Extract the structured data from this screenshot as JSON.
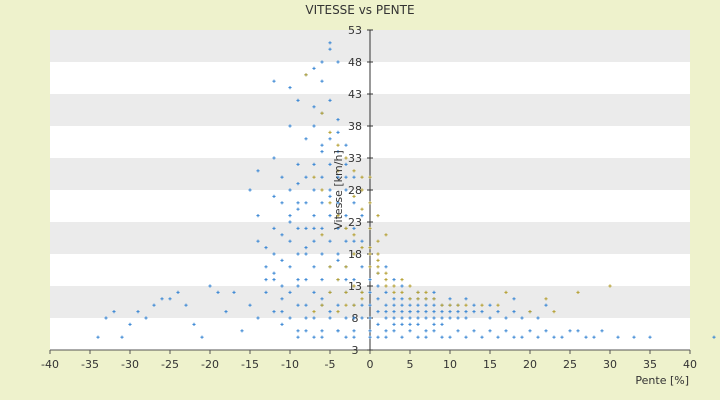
{
  "chart_data": {
    "type": "scatter",
    "title": "VITESSE vs PENTE",
    "xlabel": "Pente [%]",
    "ylabel": "Vitesse [km/h]",
    "xlim": [
      -40,
      40
    ],
    "ylim": [
      3,
      53
    ],
    "x_ticks": [
      -40,
      -35,
      -30,
      -25,
      -20,
      -15,
      -10,
      -5,
      0,
      5,
      10,
      15,
      20,
      25,
      30,
      35,
      40
    ],
    "y_ticks": [
      3,
      8,
      13,
      18,
      23,
      28,
      33,
      38,
      43,
      48,
      53
    ],
    "grid": true,
    "legend": "none",
    "colors": {
      "background": "#eef2cc",
      "band_light": "#ffffff",
      "band_dark": "#ebebeb",
      "series_primary": "#3a87d4",
      "series_secondary": "#b5a033",
      "axis": "#555555"
    },
    "series": [
      {
        "color": "#3a87d4",
        "points": [
          [
            -34,
            5
          ],
          [
            -33,
            8
          ],
          [
            -32,
            9
          ],
          [
            -31,
            5
          ],
          [
            -30,
            7
          ],
          [
            -29,
            9
          ],
          [
            -28,
            8
          ],
          [
            -27,
            10
          ],
          [
            -26,
            11
          ],
          [
            -25,
            11
          ],
          [
            -24,
            12
          ],
          [
            -23,
            10
          ],
          [
            -22,
            7
          ],
          [
            -21,
            5
          ],
          [
            -20,
            13
          ],
          [
            -19,
            12
          ],
          [
            -18,
            9
          ],
          [
            -17,
            12
          ],
          [
            -16,
            6
          ],
          [
            -15,
            10
          ],
          [
            -14,
            8
          ],
          [
            -13,
            14
          ],
          [
            -12,
            9
          ],
          [
            -11,
            7
          ],
          [
            -15,
            28
          ],
          [
            -14,
            24
          ],
          [
            -14,
            20
          ],
          [
            -13,
            12
          ],
          [
            -13,
            16
          ],
          [
            -12,
            22
          ],
          [
            -12,
            18
          ],
          [
            -12,
            14
          ],
          [
            -11,
            26
          ],
          [
            -11,
            21
          ],
          [
            -11,
            17
          ],
          [
            -11,
            13
          ],
          [
            -11,
            9
          ],
          [
            -10,
            28
          ],
          [
            -10,
            24
          ],
          [
            -10,
            20
          ],
          [
            -10,
            16
          ],
          [
            -10,
            12
          ],
          [
            -10,
            8
          ],
          [
            -9,
            26
          ],
          [
            -9,
            22
          ],
          [
            -9,
            18
          ],
          [
            -9,
            14
          ],
          [
            -9,
            10
          ],
          [
            -9,
            6
          ],
          [
            -8,
            30
          ],
          [
            -8,
            26
          ],
          [
            -8,
            22
          ],
          [
            -8,
            18
          ],
          [
            -8,
            14
          ],
          [
            -8,
            10
          ],
          [
            -8,
            6
          ],
          [
            -7,
            32
          ],
          [
            -7,
            28
          ],
          [
            -7,
            24
          ],
          [
            -7,
            20
          ],
          [
            -7,
            16
          ],
          [
            -7,
            12
          ],
          [
            -7,
            8
          ],
          [
            -6,
            34
          ],
          [
            -6,
            30
          ],
          [
            -6,
            26
          ],
          [
            -6,
            22
          ],
          [
            -6,
            18
          ],
          [
            -6,
            14
          ],
          [
            -6,
            10
          ],
          [
            -6,
            6
          ],
          [
            -5,
            36
          ],
          [
            -5,
            32
          ],
          [
            -5,
            28
          ],
          [
            -5,
            24
          ],
          [
            -5,
            20
          ],
          [
            -5,
            16
          ],
          [
            -5,
            12
          ],
          [
            -5,
            8
          ],
          [
            -4,
            34
          ],
          [
            -4,
            30
          ],
          [
            -4,
            26
          ],
          [
            -4,
            22
          ],
          [
            -4,
            18
          ],
          [
            -4,
            14
          ],
          [
            -4,
            10
          ],
          [
            -4,
            6
          ],
          [
            -3,
            32
          ],
          [
            -3,
            28
          ],
          [
            -3,
            24
          ],
          [
            -3,
            20
          ],
          [
            -3,
            16
          ],
          [
            -3,
            12
          ],
          [
            -3,
            8
          ],
          [
            -2,
            30
          ],
          [
            -2,
            26
          ],
          [
            -2,
            22
          ],
          [
            -2,
            18
          ],
          [
            -2,
            14
          ],
          [
            -2,
            10
          ],
          [
            -2,
            6
          ],
          [
            -1,
            24
          ],
          [
            -1,
            20
          ],
          [
            -1,
            16
          ],
          [
            -1,
            12
          ],
          [
            -1,
            8
          ],
          [
            -5,
            51
          ],
          [
            -5,
            50
          ],
          [
            -6,
            48
          ],
          [
            -4,
            48
          ],
          [
            -8,
            46
          ],
          [
            -7,
            47
          ],
          [
            -6,
            45
          ],
          [
            -12,
            45
          ],
          [
            -10,
            44
          ],
          [
            -9,
            42
          ],
          [
            -7,
            41
          ],
          [
            -5,
            42
          ],
          [
            -4,
            39
          ],
          [
            -10,
            38
          ],
          [
            -8,
            36
          ],
          [
            -6,
            35
          ],
          [
            -4,
            37
          ],
          [
            -12,
            33
          ],
          [
            -9,
            32
          ],
          [
            -7,
            38
          ],
          [
            -3,
            35
          ],
          [
            -11,
            30
          ],
          [
            -9,
            29
          ],
          [
            -14,
            31
          ],
          [
            -6,
            40
          ],
          [
            -3,
            30
          ],
          [
            -12,
            27
          ],
          [
            -9,
            25
          ],
          [
            -7,
            22
          ],
          [
            -5,
            27
          ],
          [
            -3,
            22
          ],
          [
            -13,
            19
          ],
          [
            -10,
            23
          ],
          [
            -8,
            19
          ],
          [
            -4,
            17
          ],
          [
            -2,
            20
          ],
          [
            -12,
            15
          ],
          [
            -9,
            13
          ],
          [
            -6,
            11
          ],
          [
            -3,
            14
          ],
          [
            -1,
            10
          ],
          [
            -11,
            11
          ],
          [
            -8,
            8
          ],
          [
            -5,
            9
          ],
          [
            -2,
            8
          ],
          [
            -7,
            5
          ],
          [
            -4,
            6
          ],
          [
            -2,
            5
          ],
          [
            -9,
            5
          ],
          [
            -6,
            5
          ],
          [
            -3,
            5
          ],
          [
            0,
            10
          ],
          [
            0,
            8
          ],
          [
            0,
            6
          ],
          [
            0,
            12
          ],
          [
            0,
            5
          ],
          [
            0,
            14
          ],
          [
            1,
            9
          ],
          [
            1,
            11
          ],
          [
            1,
            13
          ],
          [
            1,
            7
          ],
          [
            1,
            15
          ],
          [
            2,
            8
          ],
          [
            2,
            10
          ],
          [
            2,
            12
          ],
          [
            2,
            6
          ],
          [
            2,
            9
          ],
          [
            3,
            8
          ],
          [
            3,
            10
          ],
          [
            3,
            11
          ],
          [
            3,
            9
          ],
          [
            3,
            7
          ],
          [
            4,
            9
          ],
          [
            4,
            10
          ],
          [
            4,
            8
          ],
          [
            4,
            11
          ],
          [
            4,
            7
          ],
          [
            5,
            9
          ],
          [
            5,
            10
          ],
          [
            5,
            8
          ],
          [
            5,
            11
          ],
          [
            5,
            7
          ],
          [
            5,
            9
          ],
          [
            6,
            9
          ],
          [
            6,
            10
          ],
          [
            6,
            8
          ],
          [
            6,
            11
          ],
          [
            6,
            7
          ],
          [
            7,
            9
          ],
          [
            7,
            10
          ],
          [
            7,
            8
          ],
          [
            7,
            11
          ],
          [
            7,
            6
          ],
          [
            8,
            9
          ],
          [
            8,
            10
          ],
          [
            8,
            8
          ],
          [
            8,
            7
          ],
          [
            8,
            11
          ],
          [
            9,
            9
          ],
          [
            9,
            10
          ],
          [
            9,
            8
          ],
          [
            9,
            7
          ],
          [
            10,
            9
          ],
          [
            10,
            10
          ],
          [
            10,
            8
          ],
          [
            11,
            9
          ],
          [
            11,
            8
          ],
          [
            11,
            10
          ],
          [
            12,
            9
          ],
          [
            12,
            8
          ],
          [
            13,
            9
          ],
          [
            13,
            10
          ],
          [
            14,
            9
          ],
          [
            15,
            8
          ],
          [
            16,
            9
          ],
          [
            17,
            8
          ],
          [
            18,
            9
          ],
          [
            19,
            8
          ],
          [
            20,
            9
          ],
          [
            21,
            8
          ],
          [
            1,
            5
          ],
          [
            2,
            5
          ],
          [
            3,
            6
          ],
          [
            4,
            5
          ],
          [
            5,
            6
          ],
          [
            6,
            5
          ],
          [
            7,
            5
          ],
          [
            8,
            6
          ],
          [
            9,
            5
          ],
          [
            10,
            5
          ],
          [
            11,
            6
          ],
          [
            12,
            5
          ],
          [
            13,
            6
          ],
          [
            14,
            5
          ],
          [
            15,
            6
          ],
          [
            16,
            5
          ],
          [
            17,
            6
          ],
          [
            18,
            5
          ],
          [
            19,
            5
          ],
          [
            20,
            6
          ],
          [
            21,
            5
          ],
          [
            22,
            6
          ],
          [
            23,
            5
          ],
          [
            24,
            5
          ],
          [
            25,
            6
          ],
          [
            26,
            6
          ],
          [
            27,
            5
          ],
          [
            28,
            5
          ],
          [
            29,
            6
          ],
          [
            31,
            5
          ],
          [
            33,
            5
          ],
          [
            35,
            5
          ],
          [
            43,
            5
          ],
          [
            2,
            16
          ],
          [
            3,
            14
          ],
          [
            4,
            13
          ],
          [
            6,
            12
          ],
          [
            8,
            12
          ],
          [
            10,
            11
          ],
          [
            12,
            11
          ],
          [
            15,
            10
          ],
          [
            18,
            11
          ],
          [
            22,
            10
          ]
        ]
      },
      {
        "color": "#b5a033",
        "points": [
          [
            -8,
            46
          ],
          [
            -6,
            40
          ],
          [
            -5,
            37
          ],
          [
            -4,
            35
          ],
          [
            -3,
            33
          ],
          [
            -2,
            31
          ],
          [
            -1,
            30
          ],
          [
            -1,
            28
          ],
          [
            0,
            26
          ],
          [
            1,
            24
          ],
          [
            0,
            22
          ],
          [
            1,
            20
          ],
          [
            0,
            18
          ],
          [
            1,
            17
          ],
          [
            2,
            21
          ],
          [
            1,
            15
          ],
          [
            2,
            14
          ],
          [
            0,
            16
          ],
          [
            -7,
            30
          ],
          [
            -6,
            28
          ],
          [
            -5,
            26
          ],
          [
            -4,
            24
          ],
          [
            -3,
            22
          ],
          [
            -2,
            21
          ],
          [
            -2,
            18
          ],
          [
            -1,
            19
          ],
          [
            -3,
            16
          ],
          [
            -4,
            14
          ],
          [
            -2,
            13
          ],
          [
            -1,
            12
          ],
          [
            -5,
            12
          ],
          [
            -6,
            10
          ],
          [
            -3,
            10
          ],
          [
            -1,
            11
          ],
          [
            -7,
            9
          ],
          [
            0,
            19
          ],
          [
            1,
            18
          ],
          [
            1,
            16
          ],
          [
            2,
            15
          ],
          [
            2,
            13
          ],
          [
            3,
            12
          ],
          [
            3,
            13
          ],
          [
            4,
            12
          ],
          [
            4,
            14
          ],
          [
            5,
            11
          ],
          [
            5,
            13
          ],
          [
            6,
            11
          ],
          [
            6,
            12
          ],
          [
            7,
            11
          ],
          [
            7,
            12
          ],
          [
            8,
            11
          ],
          [
            9,
            10
          ],
          [
            10,
            10
          ],
          [
            11,
            10
          ],
          [
            12,
            10
          ],
          [
            14,
            10
          ],
          [
            16,
            10
          ],
          [
            17,
            12
          ],
          [
            20,
            9
          ],
          [
            22,
            11
          ],
          [
            23,
            9
          ],
          [
            26,
            12
          ],
          [
            30,
            13
          ],
          [
            0,
            30
          ],
          [
            -4,
            31
          ],
          [
            -2,
            27
          ],
          [
            -1,
            25
          ],
          [
            -6,
            21
          ],
          [
            -5,
            16
          ],
          [
            -3,
            12
          ],
          [
            -2,
            10
          ],
          [
            -4,
            9
          ]
        ]
      }
    ]
  }
}
